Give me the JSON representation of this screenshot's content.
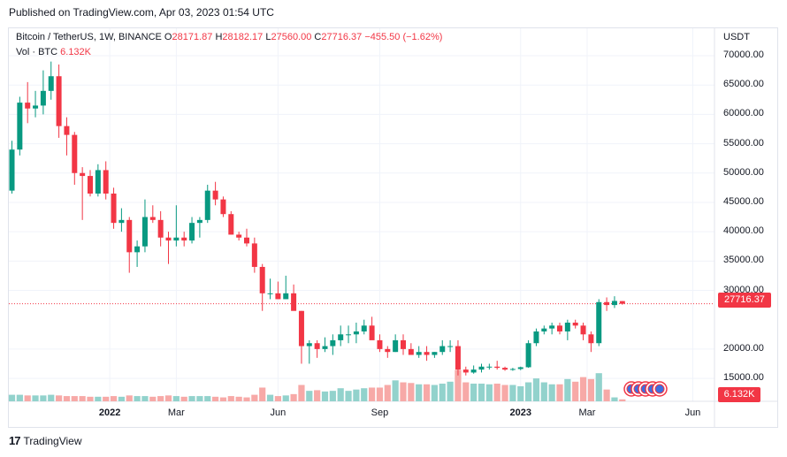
{
  "header": {
    "published": "Published on TradingView.com, Apr 03, 2023 01:54 UTC"
  },
  "legend": {
    "symbol": "Bitcoin / TetherUS, 1W, BINANCE",
    "o_label": "O",
    "o_value": "28171.87",
    "h_label": "H",
    "h_value": "28182.17",
    "l_label": "L",
    "l_value": "27560.00",
    "c_label": "C",
    "c_value": "27716.37",
    "change": "−455.50 (−1.62%)",
    "vol_label": "Vol · BTC",
    "vol_value": "6.132K"
  },
  "footer": {
    "brand": "TradingView"
  },
  "colors": {
    "up": "#089981",
    "down": "#f23645",
    "up_vol": "#92d2cc",
    "down_vol": "#f7a9a7",
    "grid": "#f0f3fa"
  },
  "chart_data": {
    "type": "candlestick",
    "interval": "1W",
    "y_unit": "USDT",
    "ylim": [
      12000,
      74000
    ],
    "y_ticks": [
      "70000.00",
      "65000.00",
      "60000.00",
      "55000.00",
      "50000.00",
      "45000.00",
      "40000.00",
      "35000.00",
      "30000.00",
      "20000.00",
      "15000.00"
    ],
    "x_ticks": [
      {
        "label": "2022",
        "bold": true,
        "index": 12.5
      },
      {
        "label": "Mar",
        "bold": false,
        "index": 21
      },
      {
        "label": "Jun",
        "bold": false,
        "index": 34
      },
      {
        "label": "Sep",
        "bold": false,
        "index": 47
      },
      {
        "label": "2023",
        "bold": true,
        "index": 65
      },
      {
        "label": "Mar",
        "bold": false,
        "index": 73.5
      },
      {
        "label": "Jun",
        "bold": false,
        "index": 87
      }
    ],
    "last_price": "27716.37",
    "last_volume": "6.132K",
    "candles": [
      [
        47000,
        55500,
        46500,
        54000,
        1.0
      ],
      [
        54000,
        63000,
        53000,
        62000,
        1.0
      ],
      [
        62000,
        65500,
        58500,
        61000,
        0.9
      ],
      [
        61000,
        64000,
        59500,
        61500,
        0.9
      ],
      [
        61500,
        67500,
        60000,
        64000,
        0.9
      ],
      [
        64000,
        69000,
        62500,
        66500,
        1.0
      ],
      [
        66500,
        68500,
        56000,
        58000,
        0.9
      ],
      [
        58000,
        59500,
        53000,
        56500,
        0.8
      ],
      [
        56500,
        57000,
        48000,
        50000,
        0.8
      ],
      [
        50000,
        51000,
        42000,
        49500,
        0.8
      ],
      [
        49500,
        50500,
        46000,
        46500,
        0.7
      ],
      [
        46500,
        51500,
        46000,
        50500,
        0.7
      ],
      [
        50500,
        52000,
        45500,
        46500,
        0.7
      ],
      [
        46500,
        47500,
        40500,
        41500,
        0.8
      ],
      [
        41500,
        44000,
        40000,
        42000,
        0.7
      ],
      [
        42000,
        42500,
        33000,
        36500,
        0.9
      ],
      [
        36500,
        38500,
        34000,
        37500,
        0.8
      ],
      [
        37500,
        45500,
        36500,
        42500,
        0.8
      ],
      [
        42500,
        44500,
        41500,
        42000,
        0.7
      ],
      [
        42000,
        43500,
        37500,
        39000,
        0.8
      ],
      [
        39000,
        40000,
        34500,
        38500,
        0.9
      ],
      [
        38500,
        44500,
        37500,
        39000,
        0.8
      ],
      [
        39000,
        40000,
        37500,
        38500,
        0.7
      ],
      [
        38500,
        42500,
        38000,
        41500,
        0.8
      ],
      [
        41500,
        42500,
        39000,
        42000,
        0.8
      ],
      [
        42000,
        48000,
        41500,
        47000,
        0.8
      ],
      [
        47000,
        48500,
        44500,
        45500,
        0.7
      ],
      [
        45500,
        46000,
        42500,
        43000,
        0.6
      ],
      [
        43000,
        43500,
        39500,
        39500,
        0.8
      ],
      [
        39500,
        40000,
        38500,
        39000,
        0.7
      ],
      [
        39000,
        40500,
        37500,
        38000,
        0.6
      ],
      [
        38000,
        39000,
        33000,
        34000,
        1.0
      ],
      [
        34000,
        34500,
        26500,
        29500,
        2.1
      ],
      [
        29500,
        32000,
        28500,
        29500,
        1.0
      ],
      [
        29500,
        31500,
        28500,
        28500,
        0.8
      ],
      [
        28500,
        32500,
        28500,
        29500,
        0.9
      ],
      [
        29500,
        31000,
        27000,
        26500,
        1.1
      ],
      [
        26500,
        26500,
        17500,
        20500,
        2.5
      ],
      [
        20500,
        21500,
        17500,
        21000,
        1.6
      ],
      [
        21000,
        21500,
        18500,
        20000,
        1.7
      ],
      [
        20000,
        22000,
        19500,
        20500,
        1.5
      ],
      [
        20500,
        22500,
        19000,
        21500,
        1.6
      ],
      [
        21500,
        24000,
        20500,
        22500,
        2.0
      ],
      [
        22500,
        24000,
        21000,
        22500,
        1.6
      ],
      [
        22500,
        24500,
        21000,
        23000,
        1.8
      ],
      [
        23000,
        25000,
        22500,
        24000,
        2.0
      ],
      [
        24000,
        25500,
        22000,
        21500,
        2.1
      ],
      [
        21500,
        22500,
        19500,
        20000,
        2.1
      ],
      [
        20000,
        20500,
        18500,
        19500,
        2.5
      ],
      [
        19500,
        22500,
        19500,
        21500,
        3.2
      ],
      [
        21500,
        22500,
        19000,
        20000,
        2.9
      ],
      [
        20000,
        21000,
        19000,
        19000,
        2.8
      ],
      [
        19000,
        20500,
        18500,
        19500,
        2.6
      ],
      [
        19500,
        20500,
        18000,
        19000,
        2.6
      ],
      [
        19000,
        19500,
        18500,
        19500,
        2.5
      ],
      [
        19500,
        21500,
        19000,
        20500,
        2.7
      ],
      [
        20500,
        21500,
        19500,
        20500,
        3.0
      ],
      [
        20500,
        21500,
        15500,
        16500,
        4.8
      ],
      [
        16500,
        17000,
        15500,
        16000,
        2.9
      ],
      [
        16000,
        17200,
        15800,
        16500,
        2.7
      ],
      [
        16500,
        17500,
        16000,
        17000,
        2.7
      ],
      [
        17000,
        17500,
        16500,
        17000,
        2.6
      ],
      [
        17000,
        18000,
        16500,
        16800,
        2.7
      ],
      [
        16800,
        17000,
        16300,
        16500,
        2.5
      ],
      [
        16500,
        16800,
        16300,
        16600,
        2.5
      ],
      [
        16600,
        17000,
        16400,
        16900,
        2.3
      ],
      [
        16900,
        21500,
        16800,
        21000,
        2.9
      ],
      [
        21000,
        23500,
        20500,
        23000,
        3.5
      ],
      [
        23000,
        24000,
        22500,
        23500,
        2.9
      ],
      [
        23500,
        24500,
        22500,
        24000,
        2.6
      ],
      [
        24000,
        24500,
        22500,
        23000,
        2.6
      ],
      [
        23000,
        25000,
        21500,
        24500,
        3.4
      ],
      [
        24500,
        25000,
        23500,
        24000,
        3.0
      ],
      [
        24000,
        24500,
        21500,
        22500,
        3.7
      ],
      [
        22500,
        23000,
        19500,
        21000,
        3.4
      ],
      [
        21000,
        28500,
        20500,
        28000,
        4.3
      ],
      [
        28000,
        28800,
        26500,
        27500,
        1.8
      ],
      [
        27500,
        29000,
        27000,
        28200,
        0.6
      ],
      [
        28171.87,
        28182.17,
        27560,
        27716.37,
        0.3
      ]
    ]
  }
}
